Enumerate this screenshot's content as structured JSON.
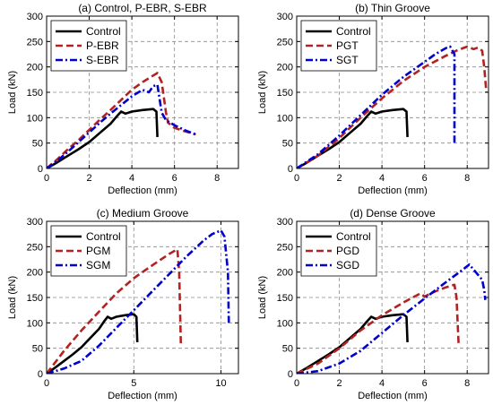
{
  "chart_data": [
    {
      "type": "line",
      "title": "(a) Control, P-EBR, S-EBR",
      "xlabel": "Deflection (mm)",
      "ylabel": "Load (kN)",
      "xlim": [
        0,
        9
      ],
      "ylim": [
        0,
        300
      ],
      "xticks": [
        0,
        2,
        4,
        6,
        8
      ],
      "yticks": [
        0,
        50,
        100,
        150,
        200,
        250,
        300
      ],
      "grid": true,
      "legend_position": "top-left",
      "series": [
        {
          "name": "Control",
          "color": "#000000",
          "dash": "solid",
          "points": [
            [
              0,
              0
            ],
            [
              0.5,
              12
            ],
            [
              1,
              25
            ],
            [
              1.5,
              38
            ],
            [
              2,
              52
            ],
            [
              2.5,
              70
            ],
            [
              3,
              88
            ],
            [
              3.3,
              103
            ],
            [
              3.5,
              112
            ],
            [
              3.7,
              108
            ],
            [
              4,
              112
            ],
            [
              4.5,
              115
            ],
            [
              5,
              117
            ],
            [
              5.15,
              112
            ],
            [
              5.2,
              62
            ]
          ]
        },
        {
          "name": "P-EBR",
          "color": "#B22222",
          "dash": "dashed",
          "points": [
            [
              0,
              0
            ],
            [
              0.5,
              18
            ],
            [
              1,
              38
            ],
            [
              1.5,
              56
            ],
            [
              2,
              76
            ],
            [
              2.5,
              96
            ],
            [
              3,
              115
            ],
            [
              3.5,
              135
            ],
            [
              4,
              155
            ],
            [
              4.5,
              170
            ],
            [
              5,
              183
            ],
            [
              5.2,
              188
            ],
            [
              5.4,
              170
            ],
            [
              5.6,
              110
            ],
            [
              5.7,
              90
            ],
            [
              6,
              80
            ],
            [
              6.5,
              73
            ],
            [
              7,
              67
            ]
          ]
        },
        {
          "name": "S-EBR",
          "color": "#0000CD",
          "dash": "dashdot",
          "points": [
            [
              0,
              0
            ],
            [
              0.5,
              15
            ],
            [
              1,
              33
            ],
            [
              1.5,
              52
            ],
            [
              2,
              71
            ],
            [
              2.5,
              90
            ],
            [
              3,
              108
            ],
            [
              3.5,
              125
            ],
            [
              4,
              142
            ],
            [
              4.5,
              155
            ],
            [
              4.8,
              150
            ],
            [
              5,
              162
            ],
            [
              5.2,
              165
            ],
            [
              5.4,
              110
            ],
            [
              5.6,
              95
            ],
            [
              6,
              85
            ],
            [
              6.5,
              75
            ],
            [
              7,
              67
            ]
          ]
        }
      ]
    },
    {
      "type": "line",
      "title": "(b) Thin Groove",
      "xlabel": "Deflection (mm)",
      "ylabel": "Load (kN)",
      "xlim": [
        0,
        9
      ],
      "ylim": [
        0,
        300
      ],
      "xticks": [
        0,
        2,
        4,
        6,
        8
      ],
      "yticks": [
        0,
        50,
        100,
        150,
        200,
        250,
        300
      ],
      "grid": true,
      "legend_position": "top-left",
      "series": [
        {
          "name": "Control",
          "color": "#000000",
          "dash": "solid",
          "points": [
            [
              0,
              0
            ],
            [
              0.5,
              12
            ],
            [
              1,
              25
            ],
            [
              1.5,
              38
            ],
            [
              2,
              52
            ],
            [
              2.5,
              70
            ],
            [
              3,
              88
            ],
            [
              3.3,
              103
            ],
            [
              3.5,
              112
            ],
            [
              3.7,
              108
            ],
            [
              4,
              112
            ],
            [
              4.5,
              115
            ],
            [
              5,
              117
            ],
            [
              5.15,
              112
            ],
            [
              5.2,
              62
            ]
          ]
        },
        {
          "name": "PGT",
          "color": "#B22222",
          "dash": "dashed",
          "points": [
            [
              0,
              0
            ],
            [
              1,
              25
            ],
            [
              2,
              60
            ],
            [
              3,
              100
            ],
            [
              4,
              138
            ],
            [
              5,
              172
            ],
            [
              6,
              200
            ],
            [
              7,
              222
            ],
            [
              7.5,
              232
            ],
            [
              8,
              240
            ],
            [
              8.3,
              235
            ],
            [
              8.5,
              238
            ],
            [
              8.7,
              232
            ],
            [
              8.8,
              200
            ],
            [
              8.9,
              150
            ]
          ]
        },
        {
          "name": "SGT",
          "color": "#0000CD",
          "dash": "dashdot",
          "points": [
            [
              0,
              0
            ],
            [
              1,
              28
            ],
            [
              2,
              65
            ],
            [
              3,
              105
            ],
            [
              4,
              145
            ],
            [
              5,
              180
            ],
            [
              6,
              210
            ],
            [
              6.5,
              225
            ],
            [
              7,
              237
            ],
            [
              7.2,
              240
            ],
            [
              7.4,
              225
            ],
            [
              7.4,
              50
            ]
          ]
        }
      ]
    },
    {
      "type": "line",
      "title": "(c) Medium Groove",
      "xlabel": "Deflection (mm)",
      "ylabel": "Load (kN)",
      "xlim": [
        0,
        11
      ],
      "ylim": [
        0,
        300
      ],
      "xticks": [
        0,
        5,
        10
      ],
      "yticks": [
        0,
        50,
        100,
        150,
        200,
        250,
        300
      ],
      "grid": true,
      "legend_position": "top-left",
      "series": [
        {
          "name": "Control",
          "color": "#000000",
          "dash": "solid",
          "points": [
            [
              0,
              0
            ],
            [
              0.5,
              12
            ],
            [
              1,
              25
            ],
            [
              1.5,
              38
            ],
            [
              2,
              52
            ],
            [
              2.5,
              70
            ],
            [
              3,
              88
            ],
            [
              3.3,
              103
            ],
            [
              3.5,
              112
            ],
            [
              3.7,
              108
            ],
            [
              4,
              112
            ],
            [
              4.5,
              115
            ],
            [
              5,
              117
            ],
            [
              5.15,
              112
            ],
            [
              5.2,
              62
            ]
          ]
        },
        {
          "name": "PGM",
          "color": "#B22222",
          "dash": "dashed",
          "points": [
            [
              0,
              0
            ],
            [
              1,
              45
            ],
            [
              2,
              85
            ],
            [
              3,
              122
            ],
            [
              4,
              158
            ],
            [
              5,
              188
            ],
            [
              6,
              212
            ],
            [
              7,
              235
            ],
            [
              7.5,
              245
            ],
            [
              7.6,
              200
            ],
            [
              7.7,
              55
            ]
          ]
        },
        {
          "name": "SGM",
          "color": "#0000CD",
          "dash": "dashdot",
          "points": [
            [
              0,
              0
            ],
            [
              1,
              10
            ],
            [
              2,
              25
            ],
            [
              3,
              55
            ],
            [
              4,
              90
            ],
            [
              5,
              125
            ],
            [
              6,
              160
            ],
            [
              7,
              195
            ],
            [
              8,
              230
            ],
            [
              9,
              262
            ],
            [
              9.5,
              275
            ],
            [
              10,
              282
            ],
            [
              10.2,
              270
            ],
            [
              10.4,
              200
            ],
            [
              10.45,
              100
            ]
          ]
        }
      ]
    },
    {
      "type": "line",
      "title": "(d) Dense Groove",
      "xlabel": "Deflection (mm)",
      "ylabel": "Load (kN)",
      "xlim": [
        0,
        9
      ],
      "ylim": [
        0,
        300
      ],
      "xticks": [
        0,
        2,
        4,
        6,
        8
      ],
      "yticks": [
        0,
        50,
        100,
        150,
        200,
        250,
        300
      ],
      "grid": true,
      "legend_position": "top-left",
      "series": [
        {
          "name": "Control",
          "color": "#000000",
          "dash": "solid",
          "points": [
            [
              0,
              0
            ],
            [
              0.5,
              12
            ],
            [
              1,
              25
            ],
            [
              1.5,
              38
            ],
            [
              2,
              52
            ],
            [
              2.5,
              70
            ],
            [
              3,
              88
            ],
            [
              3.3,
              103
            ],
            [
              3.5,
              112
            ],
            [
              3.7,
              108
            ],
            [
              4,
              112
            ],
            [
              4.5,
              115
            ],
            [
              5,
              117
            ],
            [
              5.15,
              112
            ],
            [
              5.2,
              62
            ]
          ]
        },
        {
          "name": "PGD",
          "color": "#B22222",
          "dash": "dashed",
          "points": [
            [
              0,
              0
            ],
            [
              1,
              20
            ],
            [
              2,
              50
            ],
            [
              3,
              85
            ],
            [
              4,
              115
            ],
            [
              5,
              140
            ],
            [
              5.8,
              158
            ],
            [
              6,
              152
            ],
            [
              6.5,
              162
            ],
            [
              7,
              170
            ],
            [
              7.4,
              175
            ],
            [
              7.5,
              150
            ],
            [
              7.6,
              55
            ]
          ]
        },
        {
          "name": "SGD",
          "color": "#0000CD",
          "dash": "dashdot",
          "points": [
            [
              0,
              0
            ],
            [
              1,
              5
            ],
            [
              2,
              20
            ],
            [
              3,
              45
            ],
            [
              4,
              80
            ],
            [
              5,
              115
            ],
            [
              6,
              148
            ],
            [
              7,
              180
            ],
            [
              7.8,
              205
            ],
            [
              8.1,
              215
            ],
            [
              8.4,
              200
            ],
            [
              8.7,
              185
            ],
            [
              8.8,
              165
            ],
            [
              8.85,
              145
            ]
          ]
        }
      ]
    }
  ]
}
